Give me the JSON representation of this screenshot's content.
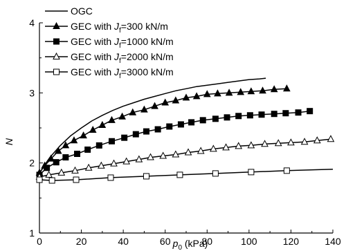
{
  "chart_data": {
    "type": "line",
    "title": "",
    "xlabel": "p",
    "xlabel_sub": "0",
    "xlabel_unit": " (kPa)",
    "ylabel": "N",
    "xlim": [
      0,
      140
    ],
    "ylim": [
      1,
      4
    ],
    "xticks": [
      0,
      20,
      40,
      60,
      80,
      100,
      120,
      140
    ],
    "yticks": [
      1,
      2,
      3,
      4
    ],
    "grid": false,
    "legend_position": "top-left",
    "series": [
      {
        "name": "OGC",
        "legend_prefix": "OGC",
        "legend_jf": "",
        "marker": "none",
        "color": "#000000",
        "points": [
          [
            0,
            1.85
          ],
          [
            2,
            1.95
          ],
          [
            5,
            2.08
          ],
          [
            10,
            2.25
          ],
          [
            15,
            2.39
          ],
          [
            20,
            2.5
          ],
          [
            25,
            2.6
          ],
          [
            30,
            2.68
          ],
          [
            35,
            2.75
          ],
          [
            40,
            2.81
          ],
          [
            45,
            2.86
          ],
          [
            50,
            2.91
          ],
          [
            55,
            2.95
          ],
          [
            60,
            2.99
          ],
          [
            65,
            3.03
          ],
          [
            70,
            3.06
          ],
          [
            75,
            3.09
          ],
          [
            80,
            3.11
          ],
          [
            85,
            3.13
          ],
          [
            90,
            3.15
          ],
          [
            95,
            3.17
          ],
          [
            100,
            3.19
          ],
          [
            105,
            3.2
          ],
          [
            108,
            3.21
          ]
        ]
      },
      {
        "name": "GEC with Jf=300 kN/m",
        "legend_prefix": "GEC with ",
        "legend_jf": "=300 kN/m",
        "marker": "triangle-filled",
        "color": "#000000",
        "points": [
          [
            0,
            1.86
          ],
          [
            2.5,
            1.96
          ],
          [
            5.5,
            2.06
          ],
          [
            9,
            2.17
          ],
          [
            12.5,
            2.25
          ],
          [
            16.5,
            2.32
          ],
          [
            21,
            2.39
          ],
          [
            25.5,
            2.47
          ],
          [
            30,
            2.54
          ],
          [
            34.5,
            2.61
          ],
          [
            39.5,
            2.66
          ],
          [
            44.5,
            2.72
          ],
          [
            50,
            2.76
          ],
          [
            55,
            2.81
          ],
          [
            60,
            2.86
          ],
          [
            65,
            2.89
          ],
          [
            70,
            2.93
          ],
          [
            75,
            2.95
          ],
          [
            80,
            2.98
          ],
          [
            85,
            2.99
          ],
          [
            90.5,
            3.0
          ],
          [
            96,
            3.01
          ],
          [
            101,
            3.02
          ],
          [
            106.5,
            3.03
          ],
          [
            112,
            3.05
          ],
          [
            118,
            3.06
          ]
        ]
      },
      {
        "name": "GEC with Jf=1000 kN/m",
        "legend_prefix": "GEC with ",
        "legend_jf": "=1000 kN/m",
        "marker": "square-filled",
        "color": "#000000",
        "points": [
          [
            0,
            1.83
          ],
          [
            3.5,
            1.93
          ],
          [
            8,
            2.01
          ],
          [
            12.5,
            2.08
          ],
          [
            18,
            2.13
          ],
          [
            23,
            2.19
          ],
          [
            28.5,
            2.25
          ],
          [
            34.5,
            2.31
          ],
          [
            40.5,
            2.36
          ],
          [
            46,
            2.41
          ],
          [
            51,
            2.45
          ],
          [
            56.5,
            2.48
          ],
          [
            62,
            2.52
          ],
          [
            67.5,
            2.55
          ],
          [
            72.5,
            2.58
          ],
          [
            78,
            2.61
          ],
          [
            84,
            2.63
          ],
          [
            89.5,
            2.65
          ],
          [
            95,
            2.67
          ],
          [
            100.5,
            2.68
          ],
          [
            106,
            2.69
          ],
          [
            112,
            2.7
          ],
          [
            117.5,
            2.71
          ],
          [
            123.5,
            2.72
          ],
          [
            129,
            2.74
          ]
        ]
      },
      {
        "name": "GEC with Jf=2000 kN/m",
        "legend_prefix": "GEC with ",
        "legend_jf": "=2000 kN/m",
        "marker": "triangle-open",
        "color": "#000000",
        "points": [
          [
            0,
            1.8
          ],
          [
            4.5,
            1.83
          ],
          [
            10.5,
            1.86
          ],
          [
            17,
            1.89
          ],
          [
            23.5,
            1.93
          ],
          [
            29.5,
            1.96
          ],
          [
            35.5,
            1.99
          ],
          [
            41.5,
            2.02
          ],
          [
            47.5,
            2.05
          ],
          [
            53,
            2.08
          ],
          [
            59,
            2.1
          ],
          [
            65,
            2.12
          ],
          [
            71,
            2.15
          ],
          [
            77,
            2.17
          ],
          [
            83,
            2.2
          ],
          [
            89,
            2.22
          ],
          [
            95,
            2.24
          ],
          [
            101,
            2.25
          ],
          [
            107.5,
            2.27
          ],
          [
            114,
            2.28
          ],
          [
            120,
            2.29
          ],
          [
            126.5,
            2.3
          ],
          [
            132.5,
            2.32
          ],
          [
            139,
            2.34
          ]
        ]
      },
      {
        "name": "GEC with Jf=3000 kN/m",
        "legend_prefix": "GEC with ",
        "legend_jf": "=3000 kN/m",
        "marker": "square-open",
        "color": "#000000",
        "points": [
          [
            0,
            1.76
          ],
          [
            6,
            1.75
          ],
          [
            17.5,
            1.76
          ],
          [
            34,
            1.79
          ],
          [
            51,
            1.81
          ],
          [
            67,
            1.83
          ],
          [
            84,
            1.85
          ],
          [
            101,
            1.87
          ],
          [
            118,
            1.89
          ],
          [
            140,
            1.91
          ]
        ],
        "marker_indices": [
          0,
          1,
          2,
          3,
          4,
          5,
          6,
          7,
          8
        ]
      }
    ]
  }
}
